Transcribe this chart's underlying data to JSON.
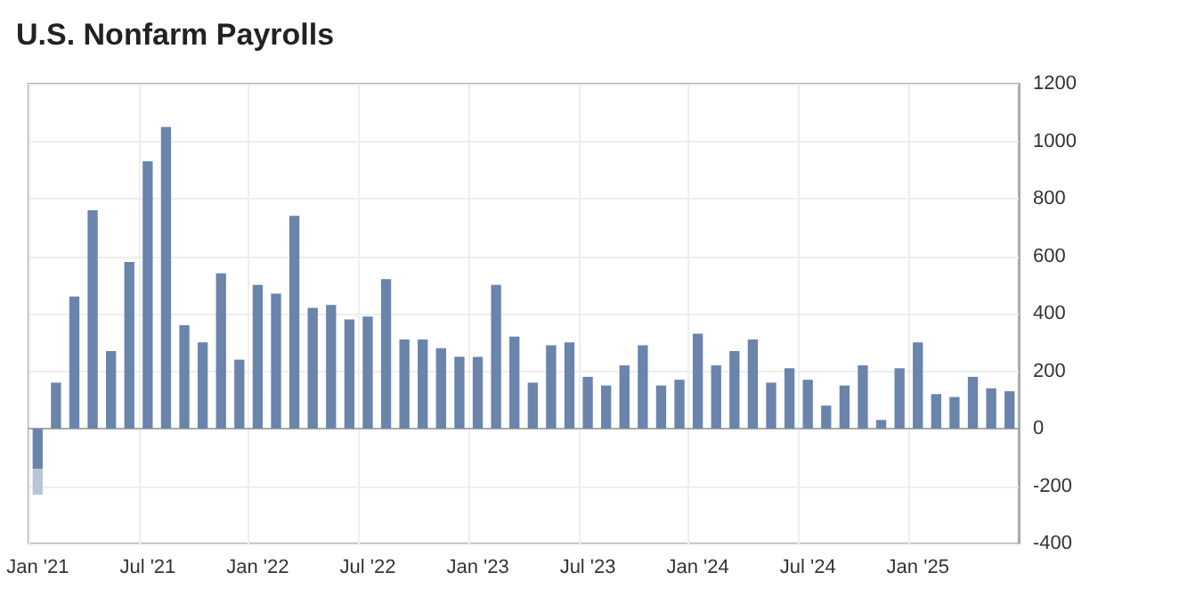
{
  "chart_data": {
    "type": "bar",
    "title": "U.S. Nonfarm Payrolls",
    "categories": [
      "Jan '21",
      null,
      null,
      null,
      null,
      null,
      "Jul '21",
      null,
      null,
      null,
      null,
      null,
      "Jan '22",
      null,
      null,
      null,
      null,
      null,
      "Jul '22",
      null,
      null,
      null,
      null,
      null,
      "Jan '23",
      null,
      null,
      null,
      null,
      null,
      "Jul '23",
      null,
      null,
      null,
      null,
      null,
      "Jan '24",
      null,
      null,
      null,
      null,
      null,
      "Jul '24",
      null,
      null,
      null,
      null,
      null,
      "Jan '25",
      null,
      null,
      null,
      null,
      null
    ],
    "series": [
      {
        "color": "#6a84ab",
        "values": [
          -140,
          160,
          460,
          760,
          270,
          580,
          930,
          1050,
          360,
          300,
          540,
          240,
          500,
          470,
          740,
          420,
          430,
          380,
          390,
          520,
          310,
          310,
          280,
          250,
          250,
          500,
          320,
          160,
          290,
          300,
          180,
          150,
          220,
          290,
          150,
          170,
          330,
          220,
          270,
          310,
          160,
          210,
          170,
          80,
          150,
          220,
          30,
          210,
          300,
          120,
          110,
          180,
          140,
          130
        ]
      },
      {
        "color": "#b8c4d8",
        "values": [
          -90,
          null,
          null,
          null,
          null,
          null,
          null,
          null,
          null,
          null,
          null,
          null,
          null,
          null,
          null,
          null,
          null,
          null,
          null,
          null,
          null,
          null,
          null,
          null,
          null,
          null,
          null,
          null,
          null,
          null,
          null,
          null,
          null,
          null,
          null,
          null,
          null,
          null,
          null,
          null,
          null,
          null,
          null,
          null,
          null,
          null,
          null,
          null,
          null,
          null,
          null,
          null,
          null,
          null
        ]
      }
    ],
    "stacked": true,
    "ylim": [
      -400,
      1200
    ],
    "yticks": [
      -400,
      -200,
      0,
      200,
      400,
      600,
      800,
      1000,
      1200
    ],
    "grid": true
  }
}
